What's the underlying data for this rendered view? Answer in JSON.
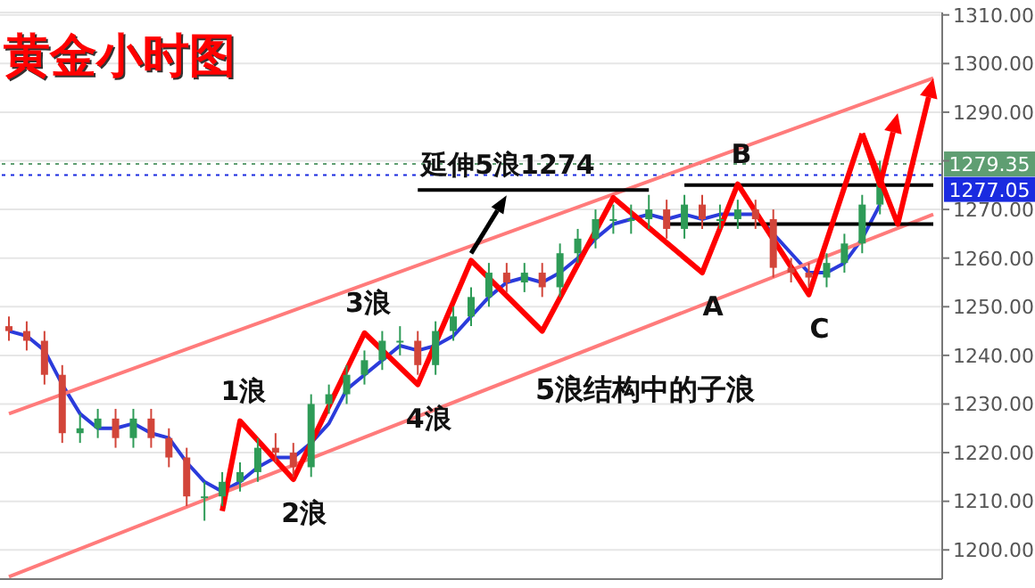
{
  "chart_data": {
    "type": "candlestick",
    "title": "黄金小时图",
    "categories": [
      null,
      null,
      null,
      null,
      null,
      null,
      null,
      null,
      null,
      null,
      null,
      null,
      null,
      null,
      null,
      null,
      null,
      null,
      null,
      null,
      null,
      null,
      null,
      null,
      null,
      null,
      null,
      null,
      null,
      null,
      null,
      null,
      null,
      null,
      null,
      null,
      null,
      null,
      null,
      null,
      null,
      null,
      null,
      null,
      null,
      null,
      null,
      null,
      null,
      null,
      null,
      null,
      null
    ],
    "ohlc": [
      [
        1246,
        1248,
        1243,
        1245
      ],
      [
        1245,
        1247,
        1241,
        1243
      ],
      [
        1243,
        1245,
        1234,
        1236
      ],
      [
        1236,
        1238,
        1222,
        1224
      ],
      [
        1224,
        1228,
        1222,
        1225
      ],
      [
        1225,
        1229,
        1223,
        1227
      ],
      [
        1227,
        1229,
        1221,
        1223
      ],
      [
        1223,
        1229,
        1221,
        1227
      ],
      [
        1227,
        1229,
        1221,
        1223
      ],
      [
        1223,
        1225,
        1217,
        1219
      ],
      [
        1219,
        1221,
        1209,
        1211
      ],
      [
        1211,
        1214,
        1206,
        1211
      ],
      [
        1211,
        1216,
        1209,
        1214
      ],
      [
        1214,
        1218,
        1212,
        1216
      ],
      [
        1216,
        1223,
        1214,
        1221
      ],
      [
        1221,
        1224,
        1218,
        1220
      ],
      [
        1220,
        1222,
        1215,
        1217
      ],
      [
        1217,
        1232,
        1215,
        1230
      ],
      [
        1230,
        1234,
        1228,
        1232
      ],
      [
        1232,
        1238,
        1230,
        1236
      ],
      [
        1236,
        1241,
        1234,
        1239
      ],
      [
        1239,
        1245,
        1237,
        1243
      ],
      [
        1243,
        1246,
        1240,
        1243
      ],
      [
        1243,
        1245,
        1236,
        1238
      ],
      [
        1238,
        1247,
        1236,
        1245
      ],
      [
        1245,
        1250,
        1243,
        1248
      ],
      [
        1248,
        1254,
        1246,
        1252
      ],
      [
        1252,
        1259,
        1250,
        1257
      ],
      [
        1257,
        1259,
        1253,
        1255
      ],
      [
        1255,
        1259,
        1253,
        1257
      ],
      [
        1257,
        1259,
        1252,
        1254
      ],
      [
        1254,
        1263,
        1252,
        1261
      ],
      [
        1261,
        1266,
        1259,
        1264
      ],
      [
        1264,
        1270,
        1262,
        1268
      ],
      [
        1268,
        1271,
        1265,
        1268
      ],
      [
        1268,
        1271,
        1265,
        1268
      ],
      [
        1268,
        1273,
        1266,
        1270
      ],
      [
        1270,
        1272,
        1264,
        1266
      ],
      [
        1266,
        1273,
        1264,
        1271
      ],
      [
        1271,
        1273,
        1266,
        1268
      ],
      [
        1268,
        1271,
        1266,
        1268
      ],
      [
        1268,
        1272,
        1266,
        1270
      ],
      [
        1270,
        1272,
        1266,
        1268
      ],
      [
        1268,
        1270,
        1256,
        1258
      ],
      [
        1258,
        1260,
        1255,
        1257
      ],
      [
        1257,
        1259,
        1254,
        1256
      ],
      [
        1256,
        1261,
        1254,
        1259
      ],
      [
        1259,
        1265,
        1257,
        1263
      ],
      [
        1263,
        1273,
        1261,
        1271
      ],
      [
        1271,
        1280,
        1269,
        1278
      ],
      null,
      null,
      null
    ],
    "series": [
      {
        "type": "line",
        "color": "#2b3bdb",
        "values": [
          1245,
          1244,
          1241,
          1234,
          1228,
          1225,
          1225,
          1226,
          1224,
          1223,
          1218,
          1214,
          1212,
          1214,
          1217,
          1219,
          1219,
          1222,
          1226,
          1233,
          1236,
          1239,
          1242,
          1241,
          1242,
          1244,
          1248,
          1252,
          1255,
          1256,
          1255,
          1257,
          1260,
          1264,
          1267,
          1268,
          1269,
          1268,
          1269,
          1268,
          1269,
          1269,
          1269,
          1265,
          1261,
          1257,
          1257,
          1259,
          1264,
          1271,
          null,
          null,
          null
        ]
      },
      {
        "type": "line",
        "color": "#ff7b7b",
        "values": [
          1228,
          null,
          null,
          null,
          null,
          null,
          null,
          null,
          null,
          null,
          null,
          null,
          null,
          null,
          null,
          null,
          null,
          null,
          null,
          null,
          null,
          null,
          null,
          null,
          null,
          null,
          null,
          null,
          null,
          null,
          null,
          null,
          null,
          null,
          null,
          null,
          null,
          null,
          null,
          null,
          null,
          null,
          null,
          null,
          null,
          null,
          null,
          null,
          null,
          null,
          null,
          null,
          1297
        ]
      },
      {
        "type": "line",
        "color": "#ff7b7b",
        "values": [
          1194.5,
          null,
          null,
          null,
          null,
          null,
          null,
          null,
          null,
          null,
          null,
          null,
          null,
          null,
          null,
          null,
          null,
          null,
          null,
          null,
          null,
          null,
          null,
          null,
          null,
          null,
          null,
          null,
          null,
          null,
          null,
          null,
          null,
          null,
          null,
          null,
          null,
          null,
          null,
          null,
          null,
          null,
          null,
          null,
          null,
          null,
          null,
          null,
          null,
          null,
          null,
          null,
          1269
        ]
      },
      {
        "type": "line",
        "color": "#000000",
        "values": [
          null,
          null,
          null,
          null,
          null,
          null,
          null,
          null,
          null,
          null,
          null,
          null,
          null,
          null,
          null,
          null,
          null,
          null,
          null,
          null,
          null,
          null,
          null,
          1274,
          null,
          null,
          null,
          null,
          null,
          null,
          null,
          null,
          null,
          null,
          null,
          null,
          1274,
          null,
          null,
          null,
          null,
          null,
          null,
          null,
          null,
          null,
          null,
          null,
          null,
          null,
          null,
          null,
          null
        ],
        "line_style": "solid"
      },
      {
        "type": "line",
        "color": "#000000",
        "values": [
          null,
          null,
          null,
          null,
          null,
          null,
          null,
          null,
          null,
          null,
          null,
          null,
          null,
          null,
          null,
          null,
          null,
          null,
          null,
          null,
          null,
          null,
          null,
          null,
          null,
          null,
          null,
          null,
          null,
          null,
          null,
          null,
          null,
          null,
          null,
          null,
          null,
          null,
          1275,
          null,
          null,
          null,
          null,
          null,
          null,
          null,
          null,
          null,
          null,
          null,
          null,
          null,
          1275
        ]
      },
      {
        "type": "line",
        "color": "#000000",
        "values": [
          null,
          null,
          null,
          null,
          null,
          null,
          null,
          null,
          null,
          null,
          null,
          null,
          null,
          null,
          null,
          null,
          null,
          null,
          null,
          null,
          null,
          null,
          null,
          null,
          null,
          null,
          null,
          null,
          null,
          null,
          null,
          null,
          null,
          null,
          null,
          null,
          null,
          1267,
          null,
          null,
          null,
          null,
          null,
          null,
          null,
          null,
          null,
          null,
          null,
          null,
          null,
          null,
          1267
        ]
      },
      {
        "type": "line",
        "color": "#ff0000",
        "values": [
          null,
          null,
          null,
          null,
          null,
          null,
          null,
          null,
          null,
          null,
          null,
          null,
          1208,
          1226.5,
          null,
          null,
          1214.5,
          null,
          null,
          null,
          1244.6,
          null,
          null,
          1234,
          null,
          null,
          1259.5,
          null,
          null,
          null,
          1245,
          null,
          null,
          null,
          1272.4,
          null,
          null,
          null,
          null,
          1257,
          null,
          1275.2,
          null,
          null,
          null,
          1252.5,
          null,
          null,
          1285.6,
          null,
          null,
          null,
          null
        ],
        "line_style": "solid"
      }
    ],
    "annotations": [
      {
        "text": "延伸5浪1274",
        "y": 1274
      },
      {
        "text": "1浪",
        "y": 1226.5
      },
      {
        "text": "2浪",
        "y": 1214.5
      },
      {
        "text": "3浪",
        "y": 1244.6
      },
      {
        "text": "4浪",
        "y": 1234
      },
      {
        "text": "A",
        "y": 1257
      },
      {
        "text": "B",
        "y": 1275.2
      },
      {
        "text": "C",
        "y": 1252.5
      },
      "5浪结构中的子浪"
    ],
    "ref_lines": [
      {
        "axis": "y",
        "value": 1279.35,
        "label": "1279.35",
        "color": "#5f9e72",
        "line_style": "dotted"
      },
      {
        "axis": "y",
        "value": 1277.05,
        "label": "1277.05",
        "color": "#1a2be0",
        "line_style": "dotted"
      }
    ],
    "ylim": [
      1194,
      1310.5
    ],
    "yticks": [
      {
        "value": 1200,
        "label": "1200.00"
      },
      {
        "value": 1210,
        "label": "1210.00"
      },
      {
        "value": 1220,
        "label": "1220.00"
      },
      {
        "value": 1230,
        "label": "1230.00"
      },
      {
        "value": 1240,
        "label": "1240.00"
      },
      {
        "value": 1250,
        "label": "1250.00"
      },
      {
        "value": 1260,
        "label": "1260.00"
      },
      {
        "value": 1270,
        "label": "1270.00"
      },
      {
        "value": 1280,
        "label": null
      },
      {
        "value": 1290,
        "label": "1290.00"
      },
      {
        "value": 1300,
        "label": "1300.00"
      },
      {
        "value": 1310,
        "label": "1310.00"
      }
    ],
    "tick_labels": "y",
    "grid": "y"
  }
}
